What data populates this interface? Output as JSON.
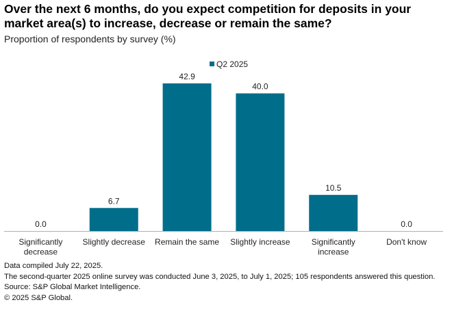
{
  "title": "Over the next 6 months, do you expect competition for deposits in your market area(s) to increase, decrease or remain the same?",
  "subtitle": "Proportion of respondents by survey (%)",
  "colors": {
    "bar": "#006e8a",
    "axis": "#b0b0b0"
  },
  "chart_data": {
    "type": "bar",
    "title": "Over the next 6 months, do you expect competition for deposits in your market area(s) to increase, decrease or remain the same?",
    "ylabel": "Proportion of respondents by survey (%)",
    "xlabel": "",
    "ylim": [
      0,
      42.9
    ],
    "grid": false,
    "legend_position": "top-center",
    "categories": [
      [
        "Significantly",
        "decrease"
      ],
      [
        "Slightly decrease"
      ],
      [
        "Remain the same"
      ],
      [
        "Slightly increase"
      ],
      [
        "Significantly",
        "increase"
      ],
      [
        "Don't know"
      ]
    ],
    "series": [
      {
        "name": "Q2 2025",
        "values": [
          0.0,
          6.7,
          42.9,
          40.0,
          10.5,
          0.0
        ],
        "value_labels": [
          "0.0",
          "6.7",
          "42.9",
          "40.0",
          "10.5",
          "0.0"
        ]
      }
    ]
  },
  "footer": {
    "line1": "Data compiled July 22, 2025.",
    "line2": "The second-quarter 2025 online survey was conducted June 3, 2025, to July 1, 2025; 105 respondents answered this question.",
    "line3": "Source: S&P Global Market Intelligence.",
    "line4": "© 2025 S&P Global."
  }
}
